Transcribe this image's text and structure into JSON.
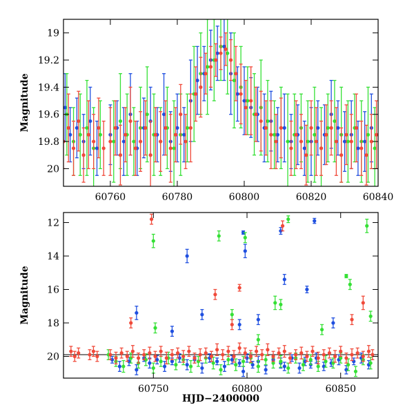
{
  "chart_data": [
    {
      "type": "scatter",
      "title": "",
      "xlabel": "",
      "ylabel": "Magnitude",
      "xlim": [
        60746,
        60840
      ],
      "ylim": [
        20.13,
        18.9
      ],
      "y_inverted": true,
      "xticks": [
        60760,
        60780,
        60800,
        60820,
        60840
      ],
      "yticks": [
        19,
        19.2,
        19.4,
        19.6,
        19.8,
        20
      ],
      "grid": false,
      "legend": "none",
      "series": [
        {
          "color": "#1f4fe0",
          "description_values": "blue points with error bars",
          "x": [
            60746.5,
            60748,
            60750,
            60752,
            60754,
            60756,
            60760,
            60762,
            60764,
            60766,
            60768,
            60770,
            60772,
            60774,
            60776,
            60778,
            60780,
            60782,
            60784,
            60786,
            60788,
            60790,
            60792,
            60794,
            60796,
            60798,
            60800,
            60802,
            60804,
            60806,
            60808,
            60810,
            60812,
            60814,
            60816,
            60818,
            60820,
            60822,
            60824,
            60826,
            60828,
            60830,
            60832,
            60834,
            60836,
            60838
          ],
          "y": [
            19.55,
            19.75,
            19.7,
            19.8,
            19.65,
            19.85,
            19.75,
            19.7,
            19.8,
            19.6,
            19.85,
            19.7,
            19.65,
            19.75,
            19.6,
            19.8,
            19.7,
            19.75,
            19.5,
            19.35,
            19.3,
            19.2,
            19.15,
            19.1,
            19.3,
            19.45,
            19.5,
            19.55,
            19.6,
            19.7,
            19.65,
            19.75,
            19.7,
            19.8,
            19.75,
            19.85,
            19.8,
            19.7,
            19.75,
            19.6,
            19.7,
            19.8,
            19.75,
            19.85,
            19.8,
            19.7
          ],
          "err": [
            0.25,
            0.2,
            0.22,
            0.2,
            0.25,
            0.2,
            0.22,
            0.2,
            0.25,
            0.3,
            0.2,
            0.22,
            0.25,
            0.2,
            0.3,
            0.22,
            0.25,
            0.2,
            0.3,
            0.25,
            0.2,
            0.22,
            0.2,
            0.25,
            0.3,
            0.2,
            0.25,
            0.22,
            0.2,
            0.25,
            0.22,
            0.2,
            0.25,
            0.2,
            0.22,
            0.2,
            0.25,
            0.2,
            0.22,
            0.25,
            0.2,
            0.22,
            0.25,
            0.2,
            0.22,
            0.25
          ]
        },
        {
          "color": "#35e035",
          "x": [
            60747,
            60749,
            60751,
            60753,
            60755,
            60757,
            60761,
            60763,
            60765,
            60767,
            60769,
            60771,
            60773,
            60775,
            60777,
            60779,
            60781,
            60783,
            60785,
            60787,
            60789,
            60791,
            60793,
            60795,
            60797,
            60799,
            60801,
            60803,
            60805,
            60807,
            60809,
            60811,
            60813,
            60815,
            60817,
            60819,
            60821,
            60823,
            60825,
            60827,
            60829,
            60831,
            60833,
            60835,
            60837,
            60839
          ],
          "y": [
            19.6,
            19.8,
            19.75,
            19.7,
            19.85,
            19.75,
            19.8,
            19.65,
            19.75,
            19.8,
            19.7,
            19.6,
            19.75,
            19.8,
            19.7,
            19.85,
            19.75,
            19.7,
            19.45,
            19.3,
            19.25,
            19.2,
            19.1,
            19.15,
            19.35,
            19.4,
            19.5,
            19.6,
            19.55,
            19.65,
            19.75,
            19.7,
            19.8,
            19.75,
            19.7,
            19.8,
            19.75,
            19.85,
            19.7,
            19.65,
            19.75,
            19.8,
            19.7,
            19.8,
            19.75,
            19.85
          ],
          "err": [
            0.3,
            0.25,
            0.3,
            0.35,
            0.3,
            0.25,
            0.3,
            0.35,
            0.3,
            0.25,
            0.3,
            0.35,
            0.3,
            0.25,
            0.3,
            0.35,
            0.3,
            0.25,
            0.35,
            0.3,
            0.35,
            0.3,
            0.25,
            0.3,
            0.35,
            0.3,
            0.25,
            0.3,
            0.35,
            0.3,
            0.25,
            0.3,
            0.35,
            0.3,
            0.25,
            0.3,
            0.35,
            0.3,
            0.25,
            0.3,
            0.35,
            0.3,
            0.25,
            0.3,
            0.35,
            0.3
          ]
        },
        {
          "color": "#f04a3a",
          "x": [
            60746,
            60747.5,
            60749,
            60750.5,
            60752,
            60753.5,
            60755,
            60756.5,
            60758,
            60760,
            60761.5,
            60763,
            60764.5,
            60766,
            60767.5,
            60769,
            60770.5,
            60772,
            60773.5,
            60775,
            60776.5,
            60778,
            60779.5,
            60781,
            60782.5,
            60784,
            60785.5,
            60787,
            60788.5,
            60790,
            60791.5,
            60793,
            60794.5,
            60796,
            60797.5,
            60799,
            60800.5,
            60802,
            60803.5,
            60805,
            60806.5,
            60808,
            60809.5,
            60811,
            60814,
            60815.5,
            60817,
            60818.5,
            60820,
            60821.5,
            60823,
            60824.5,
            60826,
            60827.5,
            60829,
            60830.5,
            60832,
            60833.5,
            60835,
            60836.5,
            60838,
            60839.5
          ],
          "y": [
            19.8,
            19.7,
            19.85,
            19.65,
            19.9,
            19.75,
            19.8,
            19.7,
            19.85,
            19.8,
            19.7,
            19.9,
            19.75,
            19.65,
            19.85,
            19.8,
            19.7,
            19.9,
            19.75,
            19.8,
            19.7,
            19.85,
            19.75,
            19.6,
            19.8,
            19.7,
            19.45,
            19.4,
            19.3,
            19.25,
            19.2,
            19.15,
            19.12,
            19.2,
            19.3,
            19.45,
            19.55,
            19.5,
            19.6,
            19.65,
            19.7,
            19.75,
            19.8,
            19.7,
            19.85,
            19.75,
            19.8,
            19.9,
            19.7,
            19.8,
            19.85,
            19.75,
            19.7,
            19.8,
            19.9,
            19.75,
            19.8,
            19.7,
            19.85,
            19.9,
            19.8,
            19.75
          ],
          "err": [
            0.2,
            0.25,
            0.2,
            0.22,
            0.2,
            0.25,
            0.2,
            0.22,
            0.2,
            0.25,
            0.2,
            0.22,
            0.2,
            0.25,
            0.2,
            0.22,
            0.2,
            0.25,
            0.2,
            0.22,
            0.2,
            0.25,
            0.2,
            0.22,
            0.2,
            0.25,
            0.2,
            0.22,
            0.15,
            0.15,
            0.12,
            0.12,
            0.12,
            0.15,
            0.2,
            0.22,
            0.2,
            0.25,
            0.2,
            0.22,
            0.2,
            0.25,
            0.2,
            0.22,
            0.2,
            0.25,
            0.2,
            0.22,
            0.2,
            0.25,
            0.2,
            0.22,
            0.2,
            0.25,
            0.2,
            0.22,
            0.2,
            0.25,
            0.2,
            0.22,
            0.2,
            0.25
          ]
        }
      ]
    },
    {
      "type": "scatter",
      "title": "",
      "xlabel": "HJD−2400000",
      "ylabel": "Magnitude",
      "xlim": [
        60702,
        60870
      ],
      "ylim": [
        21.3,
        11.4
      ],
      "y_inverted": true,
      "xticks": [
        60750,
        60800,
        60850
      ],
      "yticks": [
        12,
        14,
        16,
        18,
        20
      ],
      "grid": false,
      "legend": "none",
      "reference_line_y": 19.9,
      "series": [
        {
          "color": "#1f4fe0",
          "x": [
            60728,
            60732,
            60737,
            60741,
            60745,
            60748,
            60752,
            60756,
            60760,
            60764,
            60768,
            60772,
            60776,
            60780,
            60784,
            60788,
            60792,
            60796,
            60798,
            60800,
            60803,
            60806,
            60810,
            60814,
            60818,
            60820,
            60824,
            60828,
            60831,
            60834,
            60837,
            60841,
            60845,
            60849,
            60853,
            60857,
            60861,
            60865,
            60760,
            60768,
            60798,
            60799,
            60818,
            60836,
            60832,
            60796,
            60820,
            60741,
            60776,
            60806,
            60846
          ],
          "y": [
            20.2,
            20.6,
            20.3,
            20.8,
            20.1,
            20.4,
            20.2,
            20.6,
            20.3,
            20.1,
            20.5,
            20.2,
            20.7,
            20.1,
            20.3,
            20.6,
            20.2,
            20.4,
            20.9,
            20.1,
            20.5,
            20.3,
            20.8,
            20.2,
            20.4,
            20.6,
            20.1,
            20.7,
            20.3,
            20.5,
            20.1,
            20.6,
            20.4,
            20.2,
            20.8,
            20.3,
            20.1,
            20.5,
            18.5,
            14.0,
            12.6,
            13.7,
            12.5,
            11.9,
            16.0,
            18.1,
            15.4,
            17.4,
            17.5,
            17.8,
            18.0
          ],
          "err": [
            0.2,
            0.3,
            0.25,
            0.3,
            0.2,
            0.3,
            0.25,
            0.3,
            0.2,
            0.25,
            0.3,
            0.2,
            0.3,
            0.25,
            0.2,
            0.3,
            0.25,
            0.2,
            0.3,
            0.25,
            0.2,
            0.3,
            0.25,
            0.2,
            0.3,
            0.25,
            0.2,
            0.3,
            0.25,
            0.2,
            0.3,
            0.25,
            0.2,
            0.3,
            0.25,
            0.2,
            0.3,
            0.25,
            0.3,
            0.4,
            0.1,
            0.4,
            0.2,
            0.15,
            0.2,
            0.3,
            0.3,
            0.4,
            0.3,
            0.3,
            0.3
          ]
        },
        {
          "color": "#35e035",
          "x": [
            60726,
            60730,
            60734,
            60738,
            60742,
            60746,
            60750,
            60754,
            60758,
            60762,
            60766,
            60770,
            60774,
            60778,
            60782,
            60786,
            60790,
            60794,
            60798,
            60802,
            60806,
            60810,
            60814,
            60818,
            60822,
            60826,
            60830,
            60834,
            60838,
            60842,
            60846,
            60850,
            60854,
            60858,
            60862,
            60866,
            60750,
            60785,
            60799,
            60822,
            60853,
            60855,
            60864,
            60815,
            60818,
            60792,
            60840,
            60866,
            60751,
            60806
          ],
          "y": [
            19.9,
            20.3,
            20.6,
            20.1,
            20.4,
            20.2,
            20.7,
            20.3,
            20.1,
            20.5,
            20.2,
            20.6,
            20.3,
            20.1,
            20.4,
            20.8,
            20.2,
            20.5,
            20.3,
            20.1,
            20.6,
            20.2,
            20.4,
            20.3,
            20.7,
            20.1,
            20.5,
            20.2,
            20.6,
            20.3,
            20.4,
            20.1,
            20.5,
            20.9,
            20.2,
            20.4,
            13.1,
            12.8,
            12.9,
            11.8,
            15.2,
            15.7,
            12.2,
            16.8,
            16.9,
            17.5,
            18.4,
            17.6,
            18.3,
            19.0
          ],
          "err": [
            0.3,
            0.3,
            0.35,
            0.3,
            0.3,
            0.35,
            0.3,
            0.3,
            0.35,
            0.3,
            0.3,
            0.35,
            0.3,
            0.3,
            0.35,
            0.3,
            0.3,
            0.35,
            0.3,
            0.3,
            0.35,
            0.3,
            0.3,
            0.35,
            0.3,
            0.3,
            0.35,
            0.3,
            0.3,
            0.35,
            0.3,
            0.3,
            0.35,
            0.3,
            0.3,
            0.35,
            0.4,
            0.3,
            0.3,
            0.2,
            0.1,
            0.3,
            0.4,
            0.4,
            0.3,
            0.3,
            0.3,
            0.3,
            0.3,
            0.3
          ]
        },
        {
          "color": "#f04a3a",
          "x": [
            60706,
            60708,
            60710,
            60716,
            60718,
            60720,
            60727,
            60730,
            60733,
            60736,
            60739,
            60742,
            60745,
            60748,
            60751,
            60754,
            60757,
            60760,
            60763,
            60766,
            60769,
            60772,
            60775,
            60778,
            60781,
            60784,
            60787,
            60790,
            60793,
            60796,
            60799,
            60802,
            60805,
            60808,
            60811,
            60814,
            60817,
            60820,
            60823,
            60826,
            60829,
            60832,
            60835,
            60838,
            60841,
            60844,
            60847,
            60850,
            60853,
            60856,
            60859,
            60862,
            60865,
            60867,
            60749,
            60819,
            60796,
            60783,
            60738,
            60862,
            60856,
            60792
          ],
          "y": [
            19.7,
            20.0,
            19.8,
            19.9,
            19.7,
            20.0,
            19.9,
            20.1,
            19.8,
            20.0,
            19.7,
            20.1,
            19.9,
            19.8,
            20.0,
            19.7,
            20.1,
            19.9,
            19.8,
            20.0,
            19.7,
            20.1,
            19.9,
            19.8,
            20.0,
            19.6,
            19.9,
            19.7,
            20.0,
            19.5,
            19.8,
            20.0,
            19.7,
            19.9,
            19.6,
            20.0,
            19.8,
            19.7,
            20.1,
            19.9,
            19.8,
            20.0,
            19.7,
            20.1,
            19.9,
            19.8,
            20.0,
            19.7,
            20.1,
            19.9,
            19.8,
            20.0,
            19.7,
            19.9,
            11.8,
            12.2,
            15.9,
            16.3,
            18.0,
            16.8,
            17.8,
            18.1
          ],
          "err": [
            0.3,
            0.3,
            0.3,
            0.3,
            0.3,
            0.3,
            0.3,
            0.35,
            0.3,
            0.3,
            0.35,
            0.3,
            0.3,
            0.35,
            0.3,
            0.3,
            0.35,
            0.3,
            0.3,
            0.35,
            0.3,
            0.3,
            0.35,
            0.3,
            0.3,
            0.35,
            0.3,
            0.3,
            0.35,
            0.3,
            0.3,
            0.35,
            0.3,
            0.3,
            0.35,
            0.3,
            0.3,
            0.35,
            0.3,
            0.3,
            0.35,
            0.3,
            0.3,
            0.35,
            0.3,
            0.3,
            0.35,
            0.3,
            0.3,
            0.35,
            0.3,
            0.3,
            0.35,
            0.3,
            0.3,
            0.3,
            0.2,
            0.3,
            0.3,
            0.4,
            0.3,
            0.3
          ]
        }
      ]
    }
  ]
}
